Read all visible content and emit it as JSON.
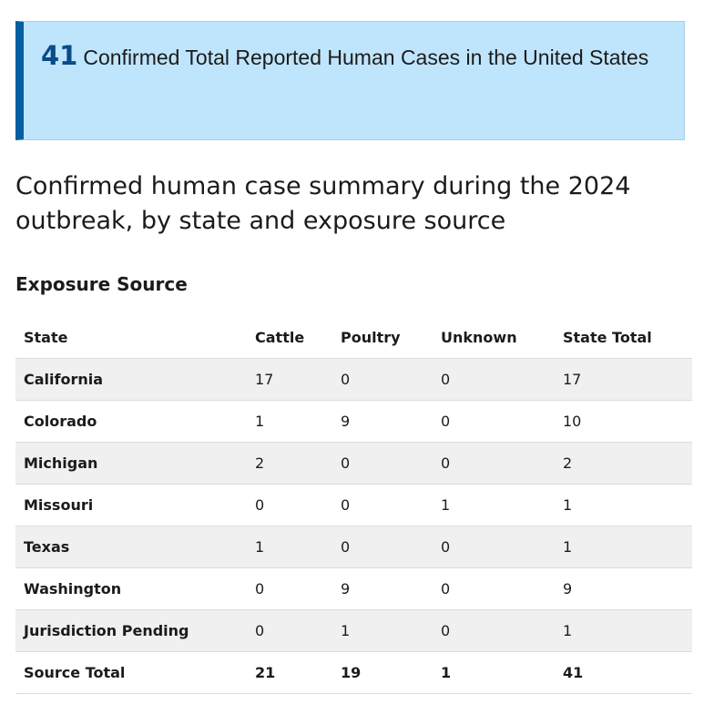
{
  "callout": {
    "number": "41",
    "text": "Confirmed Total Reported Human Cases in the United States"
  },
  "title": "Confirmed human case summary during the 2024 outbreak, by state and exposure source",
  "section_title": "Exposure Source",
  "table": {
    "headers": [
      "State",
      "Cattle",
      "Poultry",
      "Unknown",
      "State Total"
    ],
    "rows": [
      {
        "state": "California",
        "cattle": "17",
        "poultry": "0",
        "unknown": "0",
        "total": "17"
      },
      {
        "state": "Colorado",
        "cattle": "1",
        "poultry": "9",
        "unknown": "0",
        "total": "10"
      },
      {
        "state": "Michigan",
        "cattle": "2",
        "poultry": "0",
        "unknown": "0",
        "total": "2"
      },
      {
        "state": "Missouri",
        "cattle": "0",
        "poultry": "0",
        "unknown": "1",
        "total": "1"
      },
      {
        "state": "Texas",
        "cattle": "1",
        "poultry": "0",
        "unknown": "0",
        "total": "1"
      },
      {
        "state": "Washington",
        "cattle": "0",
        "poultry": "9",
        "unknown": "0",
        "total": "9"
      },
      {
        "state": "Jurisdiction Pending",
        "cattle": "0",
        "poultry": "1",
        "unknown": "0",
        "total": "1"
      }
    ],
    "footer": {
      "label": "Source Total",
      "cattle": "21",
      "poultry": "19",
      "unknown": "1",
      "total": "41"
    }
  },
  "colors": {
    "callout_background": "#bfe5fc",
    "callout_accent": "#005ea2",
    "number_color": "#0b4a8b",
    "stripe": "#f0f0f0"
  }
}
